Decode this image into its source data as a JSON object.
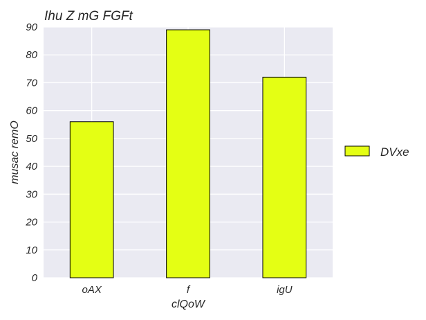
{
  "chart_data": {
    "type": "bar",
    "title": "Ihu Z mG FGFt",
    "xlabel": "clQoW",
    "ylabel": "musac remO",
    "categories": [
      "oAX",
      "f",
      "igU"
    ],
    "series": [
      {
        "name": "DVxe",
        "values": [
          56,
          89,
          72
        ]
      }
    ],
    "ylim": [
      0,
      90
    ],
    "yticks": [
      0,
      10,
      20,
      30,
      40,
      50,
      60,
      70,
      80,
      90
    ],
    "grid": true,
    "legend_position": "right",
    "colors": {
      "bar_fill": "#e4ff14",
      "bar_edge": "#000000",
      "plot_background": "#eaeaf2",
      "grid": "#ffffff"
    }
  }
}
